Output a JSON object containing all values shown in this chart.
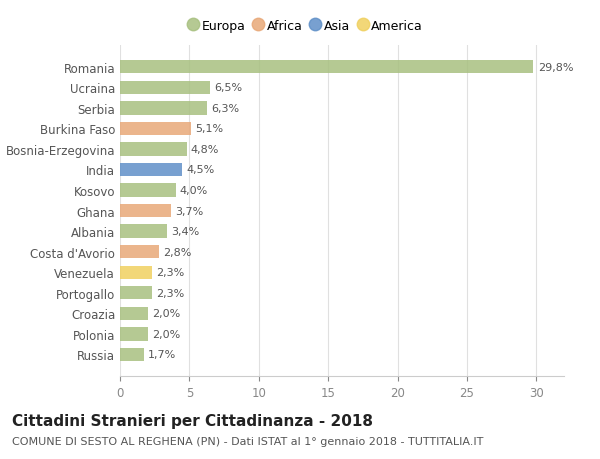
{
  "countries": [
    "Russia",
    "Polonia",
    "Croazia",
    "Portogallo",
    "Venezuela",
    "Costa d'Avorio",
    "Albania",
    "Ghana",
    "Kosovo",
    "India",
    "Bosnia-Erzegovina",
    "Burkina Faso",
    "Serbia",
    "Ucraina",
    "Romania"
  ],
  "values": [
    1.7,
    2.0,
    2.0,
    2.3,
    2.3,
    2.8,
    3.4,
    3.7,
    4.0,
    4.5,
    4.8,
    5.1,
    6.3,
    6.5,
    29.8
  ],
  "labels": [
    "1,7%",
    "2,0%",
    "2,0%",
    "2,3%",
    "2,3%",
    "2,8%",
    "3,4%",
    "3,7%",
    "4,0%",
    "4,5%",
    "4,8%",
    "5,1%",
    "6,3%",
    "6,5%",
    "29,8%"
  ],
  "continents": [
    "Europa",
    "Europa",
    "Europa",
    "Europa",
    "America",
    "Africa",
    "Europa",
    "Africa",
    "Europa",
    "Asia",
    "Europa",
    "Africa",
    "Europa",
    "Europa",
    "Europa"
  ],
  "continent_colors": {
    "Europa": "#a8c080",
    "Africa": "#e8a878",
    "Asia": "#6090c8",
    "America": "#f0d060"
  },
  "legend_continents": [
    "Europa",
    "Africa",
    "Asia",
    "America"
  ],
  "title": "Cittadini Stranieri per Cittadinanza - 2018",
  "subtitle": "COMUNE DI SESTO AL REGHENA (PN) - Dati ISTAT al 1° gennaio 2018 - TUTTITALIA.IT",
  "xlim": [
    0,
    32
  ],
  "xticks": [
    0,
    5,
    10,
    15,
    20,
    25,
    30
  ],
  "background_color": "#ffffff",
  "grid_color": "#e0e0e0",
  "bar_height": 0.65,
  "title_fontsize": 11,
  "subtitle_fontsize": 8,
  "label_fontsize": 8,
  "tick_fontsize": 8.5,
  "legend_fontsize": 9
}
